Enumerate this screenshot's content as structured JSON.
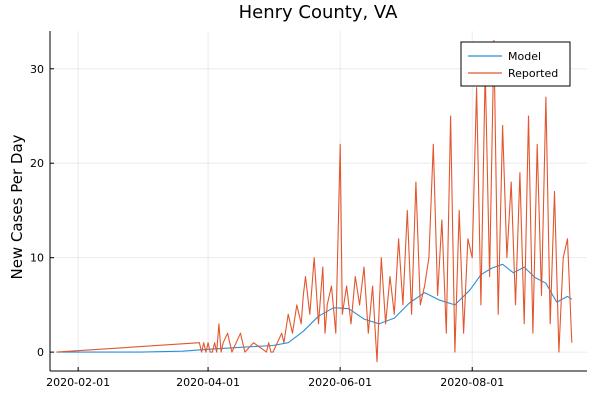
{
  "chart_data": {
    "type": "line",
    "title": "Henry County, VA",
    "xlabel": "",
    "ylabel": "New Cases Per Day",
    "x_type": "date",
    "xlim": [
      "2020-01-19",
      "2020-09-23"
    ],
    "ylim": [
      -2,
      34
    ],
    "x_ticks": [
      "2020-02-01",
      "2020-04-01",
      "2020-06-01",
      "2020-08-01"
    ],
    "y_ticks": [
      0,
      10,
      20,
      30
    ],
    "grid": true,
    "legend_position": "top-right",
    "colors": {
      "Model": "#2b8fd8",
      "Reported": "#e2572f"
    },
    "series": [
      {
        "name": "Model",
        "x": [
          "2020-01-22",
          "2020-03-01",
          "2020-03-20",
          "2020-04-01",
          "2020-04-15",
          "2020-05-01",
          "2020-05-08",
          "2020-05-15",
          "2020-05-22",
          "2020-05-29",
          "2020-06-05",
          "2020-06-12",
          "2020-06-19",
          "2020-06-26",
          "2020-07-03",
          "2020-07-10",
          "2020-07-17",
          "2020-07-24",
          "2020-07-31",
          "2020-08-05",
          "2020-08-10",
          "2020-08-15",
          "2020-08-20",
          "2020-08-25",
          "2020-08-30",
          "2020-09-04",
          "2020-09-09",
          "2020-09-14",
          "2020-09-16"
        ],
        "values": [
          0,
          0,
          0.1,
          0.3,
          0.5,
          0.7,
          1.0,
          2.2,
          3.8,
          4.7,
          4.6,
          3.5,
          3.0,
          3.6,
          5.2,
          6.3,
          5.5,
          5.0,
          6.6,
          8.2,
          8.9,
          9.3,
          8.4,
          9.0,
          7.9,
          7.3,
          5.3,
          5.9,
          5.6
        ]
      },
      {
        "name": "Reported",
        "x": [
          "2020-01-22",
          "2020-03-28",
          "2020-03-29",
          "2020-03-30",
          "2020-03-31",
          "2020-04-01",
          "2020-04-02",
          "2020-04-03",
          "2020-04-04",
          "2020-04-05",
          "2020-04-06",
          "2020-04-07",
          "2020-04-08",
          "2020-04-10",
          "2020-04-12",
          "2020-04-16",
          "2020-04-17",
          "2020-04-18",
          "2020-04-22",
          "2020-04-28",
          "2020-04-29",
          "2020-04-30",
          "2020-05-01",
          "2020-05-05",
          "2020-05-06",
          "2020-05-08",
          "2020-05-10",
          "2020-05-12",
          "2020-05-14",
          "2020-05-15",
          "2020-05-16",
          "2020-05-18",
          "2020-05-20",
          "2020-05-22",
          "2020-05-24",
          "2020-05-25",
          "2020-05-26",
          "2020-05-28",
          "2020-05-30",
          "2020-06-01",
          "2020-06-02",
          "2020-06-04",
          "2020-06-06",
          "2020-06-08",
          "2020-06-10",
          "2020-06-12",
          "2020-06-14",
          "2020-06-16",
          "2020-06-18",
          "2020-06-20",
          "2020-06-22",
          "2020-06-24",
          "2020-06-26",
          "2020-06-28",
          "2020-06-30",
          "2020-07-02",
          "2020-07-04",
          "2020-07-06",
          "2020-07-08",
          "2020-07-10",
          "2020-07-12",
          "2020-07-14",
          "2020-07-16",
          "2020-07-18",
          "2020-07-20",
          "2020-07-22",
          "2020-07-24",
          "2020-07-26",
          "2020-07-28",
          "2020-07-30",
          "2020-08-01",
          "2020-08-03",
          "2020-08-05",
          "2020-08-07",
          "2020-08-09",
          "2020-08-11",
          "2020-08-13",
          "2020-08-15",
          "2020-08-17",
          "2020-08-19",
          "2020-08-21",
          "2020-08-23",
          "2020-08-25",
          "2020-08-27",
          "2020-08-29",
          "2020-08-31",
          "2020-09-02",
          "2020-09-04",
          "2020-09-06",
          "2020-09-08",
          "2020-09-10",
          "2020-09-12",
          "2020-09-14",
          "2020-09-16"
        ],
        "values": [
          0,
          1,
          0,
          1,
          0,
          1,
          0,
          0,
          1,
          0,
          3,
          0,
          1,
          2,
          0,
          2,
          1,
          0,
          1,
          0,
          1,
          0,
          0,
          2,
          1,
          4,
          2,
          5,
          3,
          6,
          8,
          4,
          10,
          3,
          9,
          2,
          5,
          7,
          2,
          22,
          4,
          7,
          3,
          8,
          5,
          9,
          2,
          7,
          -1,
          10,
          3,
          8,
          4,
          12,
          5,
          15,
          4,
          18,
          5,
          7,
          10,
          22,
          6,
          14,
          2,
          25,
          0,
          15,
          2,
          12,
          10,
          28,
          5,
          30,
          8,
          33,
          4,
          24,
          10,
          18,
          5,
          19,
          3,
          25,
          2,
          22,
          6,
          27,
          3,
          17,
          0,
          10,
          12,
          1
        ]
      }
    ]
  }
}
